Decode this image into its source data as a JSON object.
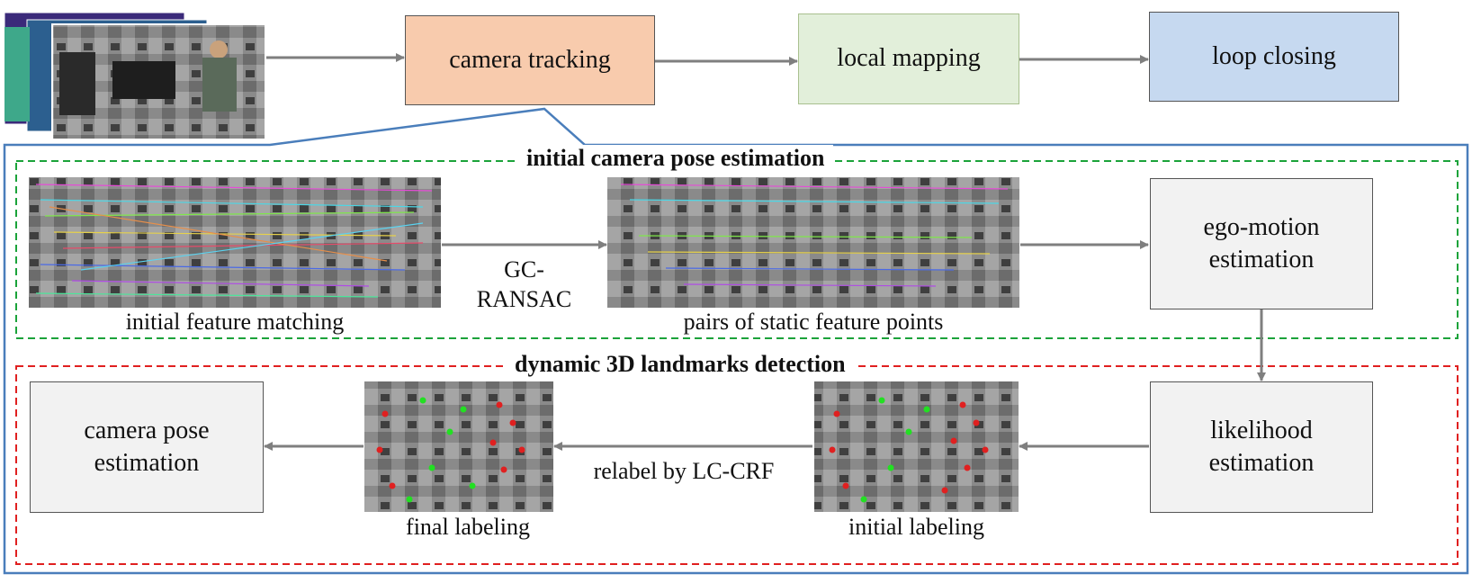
{
  "top_flow": {
    "camera_tracking": "camera tracking",
    "local_mapping": "local mapping",
    "loop_closing": "loop closing"
  },
  "pose_section": {
    "title": "initial camera pose estimation",
    "initial_feature_matching": "initial feature matching",
    "gc_ransac_line1": "GC-",
    "gc_ransac_line2": "RANSAC",
    "static_pairs": "pairs of static feature points",
    "ego_motion_line1": "ego-motion",
    "ego_motion_line2": "estimation"
  },
  "dynamic_section": {
    "title": "dynamic 3D landmarks detection",
    "likelihood_line1": "likelihood",
    "likelihood_line2": "estimation",
    "initial_labeling": "initial labeling",
    "relabel": "relabel by LC-CRF",
    "final_labeling": "final labeling",
    "camera_pose_line1": "camera pose",
    "camera_pose_line2": "estimation"
  },
  "colors": {
    "camera_tracking_fill": "#F8CBAD",
    "local_mapping_fill": "#E2EFDA",
    "loop_closing_fill": "#C6D9F0",
    "detail_border": "#4A7EBB",
    "green_dash": "#1BA33A",
    "red_dash": "#E02020",
    "gray_box": "#F2F2F2",
    "arrow": "#7F7F7F"
  }
}
